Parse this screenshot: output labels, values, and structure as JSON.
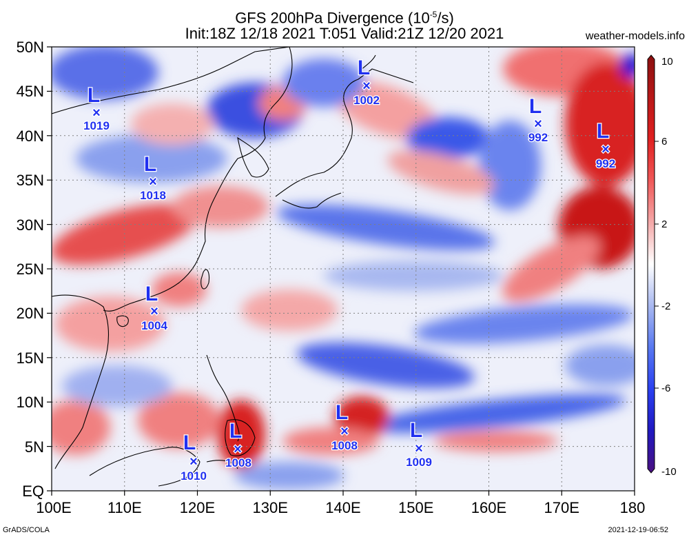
{
  "title": {
    "line1_prefix": "GFS 200hPa Divergence (10",
    "line1_sup": "-5",
    "line1_suffix": "/s)",
    "line2": "Init:18Z 12/18 2021 T:051 Valid:21Z 12/20 2021"
  },
  "site": "weather-models.info",
  "footer": {
    "left": "GrADS/COLA",
    "right": "2021-12-19-06:52"
  },
  "axes": {
    "lat_labels": [
      "50N",
      "45N",
      "40N",
      "35N",
      "30N",
      "25N",
      "20N",
      "15N",
      "10N",
      "5N",
      "EQ"
    ],
    "lon_labels": [
      "100E",
      "110E",
      "120E",
      "130E",
      "140E",
      "150E",
      "160E",
      "170E",
      "180"
    ]
  },
  "colorbar": {
    "labels": [
      "10",
      "6",
      "2",
      "-2",
      "-6",
      "-10"
    ],
    "colors": [
      "#5a1a7a",
      "#2020d0",
      "#2a4cf0",
      "#6a8cf0",
      "#aebef0",
      "#e8ecf8",
      "#ffffff",
      "#f8e4e4",
      "#f0b0b0",
      "#f07070",
      "#e03030",
      "#c01818",
      "#8a1010"
    ]
  },
  "pressure_centers": [
    {
      "value": "1019",
      "type": "L"
    },
    {
      "value": "1002",
      "type": "L"
    },
    {
      "value": "992",
      "type": "L"
    },
    {
      "value": "992",
      "type": "L"
    },
    {
      "value": "1018",
      "type": "L"
    },
    {
      "value": "1004",
      "type": "L"
    },
    {
      "value": "1010",
      "type": "L"
    },
    {
      "value": "1008",
      "type": "L"
    },
    {
      "value": "1008",
      "type": "L"
    },
    {
      "value": "1009",
      "type": "L"
    }
  ]
}
